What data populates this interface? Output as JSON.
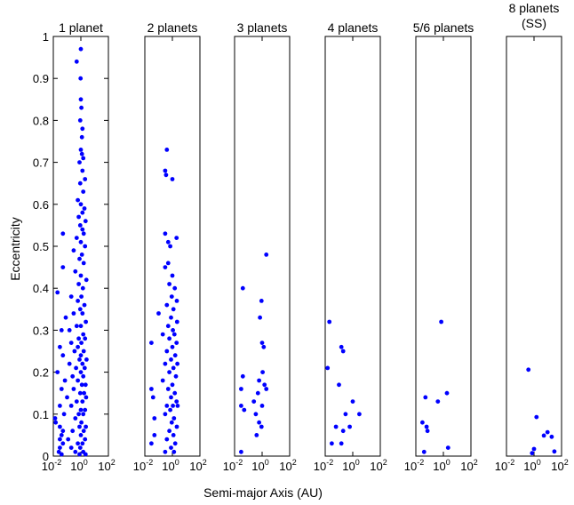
{
  "chart_data": {
    "type": "scatter",
    "xlabel": "Semi-major Axis (AU)",
    "ylabel": "Eccentricity",
    "x_scale": "log",
    "xlim": [
      0.01,
      100
    ],
    "ylim": [
      0,
      1
    ],
    "y_ticks": [
      "0",
      "0.1",
      "0.2",
      "0.3",
      "0.4",
      "0.5",
      "0.6",
      "0.7",
      "0.8",
      "0.9",
      "1"
    ],
    "x_ticks": [
      {
        "base": "10",
        "exp": "-2"
      },
      {
        "base": "10",
        "exp": "0"
      },
      {
        "base": "10",
        "exp": "2"
      }
    ],
    "marker_color": "#0000ff",
    "grid": false,
    "panels": [
      {
        "title": [
          "1 planet"
        ],
        "points": [
          [
            0.5,
            0.94
          ],
          [
            1.0,
            0.97
          ],
          [
            0.95,
            0.9
          ],
          [
            1.0,
            0.85
          ],
          [
            1.1,
            0.83
          ],
          [
            0.9,
            0.8
          ],
          [
            1.3,
            0.78
          ],
          [
            1.2,
            0.76
          ],
          [
            1.0,
            0.73
          ],
          [
            1.2,
            0.72
          ],
          [
            1.5,
            0.71
          ],
          [
            0.8,
            0.7
          ],
          [
            1.3,
            0.68
          ],
          [
            2.0,
            0.66
          ],
          [
            0.9,
            0.65
          ],
          [
            1.5,
            0.63
          ],
          [
            0.6,
            0.61
          ],
          [
            1.0,
            0.6
          ],
          [
            1.8,
            0.59
          ],
          [
            1.3,
            0.58
          ],
          [
            0.7,
            0.57
          ],
          [
            2.2,
            0.56
          ],
          [
            0.9,
            0.55
          ],
          [
            1.3,
            0.54
          ],
          [
            1.6,
            0.53
          ],
          [
            0.05,
            0.53
          ],
          [
            0.5,
            0.52
          ],
          [
            1.0,
            0.51
          ],
          [
            2.0,
            0.5
          ],
          [
            0.3,
            0.49
          ],
          [
            1.2,
            0.48
          ],
          [
            0.8,
            0.47
          ],
          [
            1.6,
            0.46
          ],
          [
            0.05,
            0.45
          ],
          [
            0.4,
            0.44
          ],
          [
            1.0,
            0.43
          ],
          [
            2.5,
            0.42
          ],
          [
            0.7,
            0.41
          ],
          [
            1.4,
            0.4
          ],
          [
            0.02,
            0.39
          ],
          [
            0.2,
            0.38
          ],
          [
            1.1,
            0.38
          ],
          [
            0.6,
            0.37
          ],
          [
            1.8,
            0.36
          ],
          [
            0.9,
            0.35
          ],
          [
            0.3,
            0.34
          ],
          [
            1.3,
            0.34
          ],
          [
            0.08,
            0.33
          ],
          [
            2.3,
            0.32
          ],
          [
            0.5,
            0.31
          ],
          [
            1.0,
            0.31
          ],
          [
            0.04,
            0.3
          ],
          [
            0.15,
            0.3
          ],
          [
            1.5,
            0.29
          ],
          [
            0.7,
            0.28
          ],
          [
            2.0,
            0.28
          ],
          [
            0.2,
            0.27
          ],
          [
            1.1,
            0.27
          ],
          [
            0.03,
            0.26
          ],
          [
            0.6,
            0.26
          ],
          [
            1.6,
            0.25
          ],
          [
            0.35,
            0.25
          ],
          [
            1.0,
            0.24
          ],
          [
            0.05,
            0.24
          ],
          [
            2.6,
            0.23
          ],
          [
            0.8,
            0.23
          ],
          [
            0.15,
            0.22
          ],
          [
            1.3,
            0.22
          ],
          [
            0.45,
            0.21
          ],
          [
            1.9,
            0.21
          ],
          [
            0.02,
            0.2
          ],
          [
            1.0,
            0.2
          ],
          [
            0.25,
            0.19
          ],
          [
            1.5,
            0.19
          ],
          [
            0.07,
            0.18
          ],
          [
            0.6,
            0.18
          ],
          [
            2.2,
            0.17
          ],
          [
            1.2,
            0.17
          ],
          [
            0.04,
            0.16
          ],
          [
            0.3,
            0.16
          ],
          [
            1.7,
            0.15
          ],
          [
            0.9,
            0.15
          ],
          [
            0.1,
            0.14
          ],
          [
            2.4,
            0.14
          ],
          [
            0.5,
            0.13
          ],
          [
            1.3,
            0.13
          ],
          [
            0.03,
            0.12
          ],
          [
            0.2,
            0.12
          ],
          [
            1.0,
            0.11
          ],
          [
            2.0,
            0.11
          ],
          [
            0.06,
            0.1
          ],
          [
            0.7,
            0.1
          ],
          [
            1.5,
            0.1
          ],
          [
            0.012,
            0.09
          ],
          [
            0.4,
            0.09
          ],
          [
            1.1,
            0.08
          ],
          [
            0.015,
            0.08
          ],
          [
            0.03,
            0.07
          ],
          [
            2.3,
            0.07
          ],
          [
            0.8,
            0.07
          ],
          [
            0.05,
            0.06
          ],
          [
            0.25,
            0.06
          ],
          [
            1.6,
            0.06
          ],
          [
            0.04,
            0.05
          ],
          [
            1.0,
            0.05
          ],
          [
            0.12,
            0.04
          ],
          [
            0.03,
            0.04
          ],
          [
            2.0,
            0.04
          ],
          [
            0.6,
            0.03
          ],
          [
            0.05,
            0.03
          ],
          [
            1.3,
            0.03
          ],
          [
            0.03,
            0.02
          ],
          [
            0.2,
            0.02
          ],
          [
            0.9,
            0.02
          ],
          [
            0.025,
            0.01
          ],
          [
            0.4,
            0.01
          ],
          [
            1.5,
            0.01
          ],
          [
            0.04,
            0.0
          ],
          [
            0.8,
            0.0
          ],
          [
            2.2,
            0.0
          ]
        ]
      },
      {
        "title": [
          "2 planets"
        ],
        "points": [
          [
            0.4,
            0.73
          ],
          [
            0.3,
            0.68
          ],
          [
            0.35,
            0.67
          ],
          [
            1.0,
            0.66
          ],
          [
            2.0,
            0.52
          ],
          [
            0.3,
            0.53
          ],
          [
            0.5,
            0.51
          ],
          [
            0.7,
            0.5
          ],
          [
            0.5,
            0.46
          ],
          [
            0.3,
            0.45
          ],
          [
            1.0,
            0.43
          ],
          [
            0.6,
            0.41
          ],
          [
            1.5,
            0.4
          ],
          [
            0.9,
            0.38
          ],
          [
            2.1,
            0.37
          ],
          [
            0.4,
            0.36
          ],
          [
            1.2,
            0.35
          ],
          [
            0.1,
            0.34
          ],
          [
            0.8,
            0.33
          ],
          [
            2.2,
            0.32
          ],
          [
            0.5,
            0.31
          ],
          [
            1.1,
            0.3
          ],
          [
            0.2,
            0.29
          ],
          [
            1.4,
            0.29
          ],
          [
            0.6,
            0.28
          ],
          [
            2.0,
            0.27
          ],
          [
            0.03,
            0.27
          ],
          [
            1.0,
            0.26
          ],
          [
            0.4,
            0.25
          ],
          [
            1.6,
            0.24
          ],
          [
            0.8,
            0.23
          ],
          [
            2.3,
            0.22
          ],
          [
            0.3,
            0.22
          ],
          [
            1.2,
            0.21
          ],
          [
            0.6,
            0.2
          ],
          [
            1.8,
            0.19
          ],
          [
            0.2,
            0.18
          ],
          [
            1.0,
            0.17
          ],
          [
            0.5,
            0.16
          ],
          [
            0.03,
            0.16
          ],
          [
            1.5,
            0.15
          ],
          [
            0.8,
            0.14
          ],
          [
            0.04,
            0.14
          ],
          [
            2.0,
            0.13
          ],
          [
            0.4,
            0.12
          ],
          [
            1.1,
            0.12
          ],
          [
            2.4,
            0.12
          ],
          [
            0.7,
            0.11
          ],
          [
            0.3,
            0.1
          ],
          [
            1.3,
            0.09
          ],
          [
            0.05,
            0.09
          ],
          [
            0.9,
            0.08
          ],
          [
            2.1,
            0.07
          ],
          [
            0.6,
            0.06
          ],
          [
            1.2,
            0.05
          ],
          [
            0.05,
            0.05
          ],
          [
            0.4,
            0.04
          ],
          [
            1.6,
            0.03
          ],
          [
            0.03,
            0.03
          ],
          [
            0.8,
            0.02
          ],
          [
            1.3,
            0.01
          ],
          [
            0.3,
            0.01
          ]
        ]
      },
      {
        "title": [
          "3 planets"
        ],
        "points": [
          [
            2.0,
            0.48
          ],
          [
            0.04,
            0.4
          ],
          [
            0.9,
            0.37
          ],
          [
            0.7,
            0.33
          ],
          [
            1.0,
            0.27
          ],
          [
            1.3,
            0.26
          ],
          [
            0.04,
            0.19
          ],
          [
            1.1,
            0.2
          ],
          [
            0.6,
            0.18
          ],
          [
            1.5,
            0.17
          ],
          [
            0.03,
            0.16
          ],
          [
            2.0,
            0.16
          ],
          [
            0.5,
            0.15
          ],
          [
            0.25,
            0.13
          ],
          [
            0.03,
            0.12
          ],
          [
            1.0,
            0.12
          ],
          [
            0.05,
            0.11
          ],
          [
            0.35,
            0.1
          ],
          [
            0.6,
            0.08
          ],
          [
            0.9,
            0.07
          ],
          [
            0.4,
            0.05
          ],
          [
            0.03,
            0.01
          ]
        ]
      },
      {
        "title": [
          "4 planets"
        ],
        "points": [
          [
            0.02,
            0.32
          ],
          [
            0.15,
            0.26
          ],
          [
            0.2,
            0.25
          ],
          [
            0.1,
            0.17
          ],
          [
            0.015,
            0.21
          ],
          [
            1.0,
            0.13
          ],
          [
            3.0,
            0.1
          ],
          [
            0.3,
            0.1
          ],
          [
            0.06,
            0.07
          ],
          [
            0.2,
            0.06
          ],
          [
            0.6,
            0.07
          ],
          [
            0.15,
            0.03
          ],
          [
            0.03,
            0.03
          ]
        ]
      },
      {
        "title": [
          "5/6 planets"
        ],
        "points": [
          [
            0.7,
            0.32
          ],
          [
            0.05,
            0.14
          ],
          [
            0.4,
            0.13
          ],
          [
            1.8,
            0.15
          ],
          [
            0.03,
            0.08
          ],
          [
            0.06,
            0.07
          ],
          [
            0.07,
            0.06
          ],
          [
            2.2,
            0.02
          ],
          [
            0.04,
            0.01
          ]
        ]
      },
      {
        "title": [
          "8 planets",
          "(SS)"
        ],
        "points": [
          [
            0.39,
            0.206
          ],
          [
            0.72,
            0.007
          ],
          [
            1.0,
            0.017
          ],
          [
            1.52,
            0.093
          ],
          [
            5.2,
            0.049
          ],
          [
            9.5,
            0.057
          ],
          [
            19.2,
            0.046
          ],
          [
            30.1,
            0.011
          ]
        ]
      }
    ]
  }
}
